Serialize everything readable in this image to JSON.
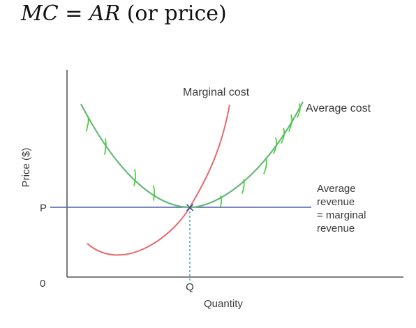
{
  "formula": {
    "lhs": "MC",
    "equals": "=",
    "rhs": "AR",
    "note": "(or price)"
  },
  "diagram": {
    "y_axis_label": "Price ($)",
    "x_axis_label": "Quantity",
    "origin_label": "0",
    "price_tick_label": "P",
    "quantity_tick_label": "Q",
    "curves": {
      "marginal_cost": {
        "label": "Marginal cost",
        "color": "#e8686b"
      },
      "average_cost": {
        "label": "Average cost",
        "color": "#66b87a"
      },
      "average_revenue": {
        "label_lines": [
          "Average",
          "revenue",
          "= marginal",
          "revenue"
        ],
        "color": "#4f5fa8"
      }
    },
    "intersection_marker": "×",
    "annotation_color": "#3dcc2a",
    "axis_color": "#333333",
    "guide_color": "#3a9fb5"
  }
}
